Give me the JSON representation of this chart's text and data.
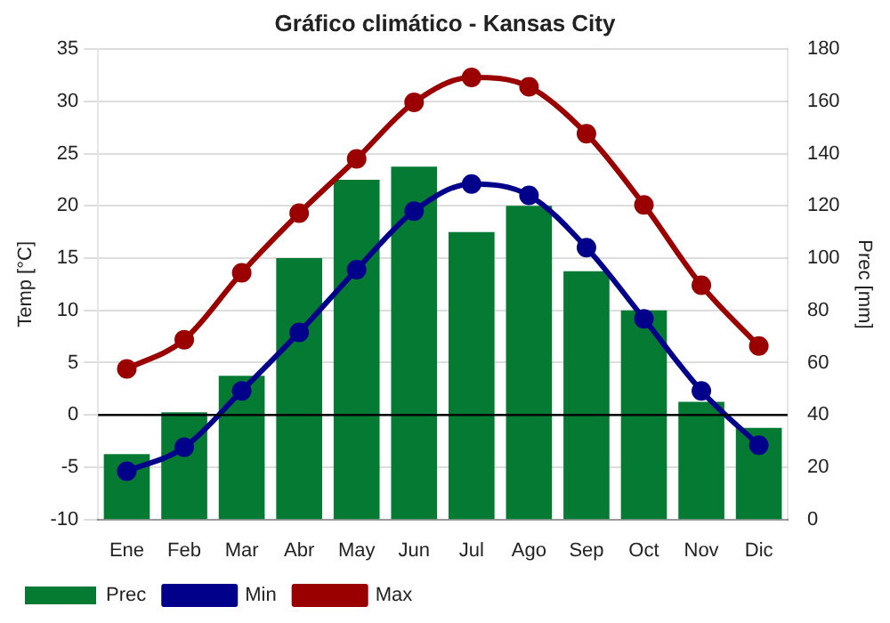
{
  "chart_data": {
    "type": "bar",
    "title": "Gráfico climático - Kansas City",
    "ylabel": "Temp [°C]",
    "y2label": "Prec [mm]",
    "categories": [
      "Ene",
      "Feb",
      "Mar",
      "Abr",
      "May",
      "Jun",
      "Jul",
      "Ago",
      "Sep",
      "Oct",
      "Nov",
      "Dic"
    ],
    "series": [
      {
        "name": "Prec",
        "axis": "y2",
        "color": "#057a32",
        "values": [
          25,
          41,
          55,
          100,
          130,
          135,
          110,
          120,
          95,
          80,
          45,
          35
        ]
      },
      {
        "name": "Min",
        "type": "line",
        "axis": "y",
        "color": "#00008b",
        "values": [
          -5.4,
          -3.1,
          2.3,
          7.9,
          13.9,
          19.5,
          22.1,
          21.0,
          16.0,
          9.2,
          2.3,
          -2.9
        ]
      },
      {
        "name": "Max",
        "type": "line",
        "axis": "y",
        "color": "#9b0000",
        "values": [
          4.4,
          7.2,
          13.6,
          19.3,
          24.5,
          29.9,
          32.3,
          31.4,
          26.9,
          20.1,
          12.4,
          6.6
        ]
      }
    ],
    "ylim": [
      -10,
      35
    ],
    "yticks": [
      -10,
      -5,
      0,
      5,
      10,
      15,
      20,
      25,
      30,
      35
    ],
    "y2lim": [
      0,
      180
    ],
    "y2ticks": [
      0,
      20,
      40,
      60,
      80,
      100,
      120,
      140,
      160,
      180
    ],
    "ref_lines": [
      {
        "axis": "y",
        "value": 0,
        "color": "#000000"
      }
    ],
    "grid": "y",
    "legend": "bottom",
    "marker": "circle",
    "line_style": "solid"
  }
}
